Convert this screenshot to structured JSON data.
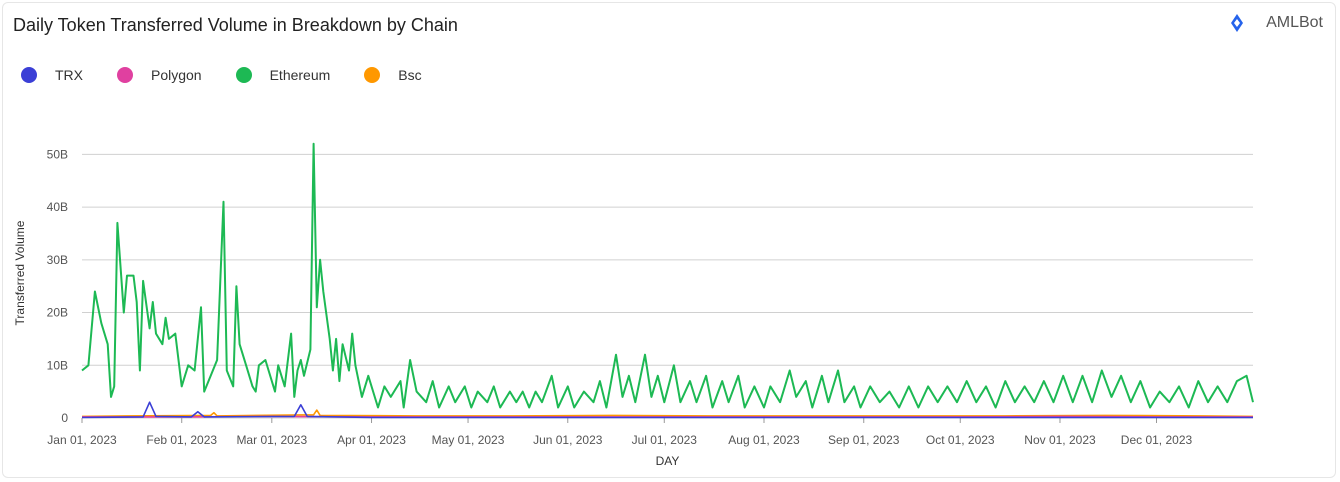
{
  "header": {
    "title": "Daily Token Transferred Volume in Breakdown by Chain",
    "brand": "AMLBot"
  },
  "colors": {
    "TRX": "#3b3fd6",
    "Polygon": "#e040a0",
    "Ethereum": "#1db954",
    "Bsc": "#ff9800",
    "grid": "#d0d0d0"
  },
  "chart_data": {
    "type": "line",
    "title": "Daily Token Transferred Volume in Breakdown by Chain",
    "xlabel": "DAY",
    "ylabel": "Transferred Volume",
    "ylim": [
      0,
      55
    ],
    "y_unit": "billions",
    "y_ticks": [
      "0",
      "10B",
      "20B",
      "30B",
      "40B",
      "50B"
    ],
    "x_ticks": [
      "Jan 01, 2023",
      "Feb 01, 2023",
      "Mar 01, 2023",
      "Apr 01, 2023",
      "May 01, 2023",
      "Jun 01, 2023",
      "Jul 01, 2023",
      "Aug 01, 2023",
      "Sep 01, 2023",
      "Oct 01, 2023",
      "Nov 01, 2023",
      "Dec 01, 2023"
    ],
    "grid": true,
    "legend_position": "top-left",
    "series": [
      {
        "name": "TRX",
        "points": [
          [
            "Jan 01, 2023",
            0.1
          ],
          [
            "Jan 20, 2023",
            0.2
          ],
          [
            "Jan 22, 2023",
            3.0
          ],
          [
            "Jan 24, 2023",
            0.3
          ],
          [
            "Feb 04, 2023",
            0.2
          ],
          [
            "Feb 06, 2023",
            1.2
          ],
          [
            "Feb 08, 2023",
            0.2
          ],
          [
            "Mar 08, 2023",
            0.3
          ],
          [
            "Mar 10, 2023",
            2.5
          ],
          [
            "Mar 12, 2023",
            0.3
          ],
          [
            "Apr 01, 2023",
            0.1
          ],
          [
            "Jun 01, 2023",
            0.1
          ],
          [
            "Sep 01, 2023",
            0.1
          ],
          [
            "Dec 31, 2023",
            0.1
          ]
        ]
      },
      {
        "name": "Polygon",
        "points": [
          [
            "Jan 01, 2023",
            0.2
          ],
          [
            "Feb 01, 2023",
            0.2
          ],
          [
            "Mar 01, 2023",
            0.3
          ],
          [
            "Apr 01, 2023",
            0.2
          ],
          [
            "May 01, 2023",
            0.2
          ],
          [
            "Jun 01, 2023",
            0.2
          ],
          [
            "Jul 01, 2023",
            0.2
          ],
          [
            "Aug 01, 2023",
            0.2
          ],
          [
            "Sep 01, 2023",
            0.2
          ],
          [
            "Oct 01, 2023",
            0.2
          ],
          [
            "Nov 01, 2023",
            0.3
          ],
          [
            "Dec 01, 2023",
            0.2
          ],
          [
            "Dec 31, 2023",
            0.2
          ]
        ]
      },
      {
        "name": "Ethereum",
        "points": [
          [
            "Jan 01, 2023",
            9
          ],
          [
            "Jan 03, 2023",
            10
          ],
          [
            "Jan 05, 2023",
            24
          ],
          [
            "Jan 07, 2023",
            18
          ],
          [
            "Jan 09, 2023",
            14
          ],
          [
            "Jan 10, 2023",
            4
          ],
          [
            "Jan 11, 2023",
            6
          ],
          [
            "Jan 12, 2023",
            37
          ],
          [
            "Jan 14, 2023",
            20
          ],
          [
            "Jan 15, 2023",
            27
          ],
          [
            "Jan 17, 2023",
            27
          ],
          [
            "Jan 18, 2023",
            22
          ],
          [
            "Jan 19, 2023",
            9
          ],
          [
            "Jan 20, 2023",
            26
          ],
          [
            "Jan 22, 2023",
            17
          ],
          [
            "Jan 23, 2023",
            22
          ],
          [
            "Jan 24, 2023",
            16
          ],
          [
            "Jan 26, 2023",
            14
          ],
          [
            "Jan 27, 2023",
            19
          ],
          [
            "Jan 28, 2023",
            15
          ],
          [
            "Jan 30, 2023",
            16
          ],
          [
            "Feb 01, 2023",
            6
          ],
          [
            "Feb 03, 2023",
            10
          ],
          [
            "Feb 05, 2023",
            9
          ],
          [
            "Feb 07, 2023",
            21
          ],
          [
            "Feb 08, 2023",
            5
          ],
          [
            "Feb 10, 2023",
            8
          ],
          [
            "Feb 12, 2023",
            11
          ],
          [
            "Feb 14, 2023",
            41
          ],
          [
            "Feb 15, 2023",
            9
          ],
          [
            "Feb 17, 2023",
            6
          ],
          [
            "Feb 18, 2023",
            25
          ],
          [
            "Feb 19, 2023",
            14
          ],
          [
            "Feb 21, 2023",
            10
          ],
          [
            "Feb 23, 2023",
            6
          ],
          [
            "Feb 24, 2023",
            5
          ],
          [
            "Feb 25, 2023",
            10
          ],
          [
            "Feb 27, 2023",
            11
          ],
          [
            "Feb 28, 2023",
            9
          ],
          [
            "Mar 02, 2023",
            5
          ],
          [
            "Mar 03, 2023",
            10
          ],
          [
            "Mar 05, 2023",
            6
          ],
          [
            "Mar 07, 2023",
            16
          ],
          [
            "Mar 08, 2023",
            4
          ],
          [
            "Mar 09, 2023",
            9
          ],
          [
            "Mar 10, 2023",
            11
          ],
          [
            "Mar 11, 2023",
            8
          ],
          [
            "Mar 13, 2023",
            13
          ],
          [
            "Mar 14, 2023",
            52
          ],
          [
            "Mar 15, 2023",
            21
          ],
          [
            "Mar 16, 2023",
            30
          ],
          [
            "Mar 17, 2023",
            24
          ],
          [
            "Mar 19, 2023",
            15
          ],
          [
            "Mar 20, 2023",
            9
          ],
          [
            "Mar 21, 2023",
            15
          ],
          [
            "Mar 22, 2023",
            7
          ],
          [
            "Mar 23, 2023",
            14
          ],
          [
            "Mar 25, 2023",
            9
          ],
          [
            "Mar 26, 2023",
            16
          ],
          [
            "Mar 27, 2023",
            10
          ],
          [
            "Mar 29, 2023",
            4
          ],
          [
            "Mar 31, 2023",
            8
          ],
          [
            "Apr 03, 2023",
            2
          ],
          [
            "Apr 05, 2023",
            6
          ],
          [
            "Apr 07, 2023",
            4
          ],
          [
            "Apr 10, 2023",
            7
          ],
          [
            "Apr 11, 2023",
            2
          ],
          [
            "Apr 13, 2023",
            11
          ],
          [
            "Apr 15, 2023",
            5
          ],
          [
            "Apr 18, 2023",
            3
          ],
          [
            "Apr 20, 2023",
            7
          ],
          [
            "Apr 22, 2023",
            2
          ],
          [
            "Apr 25, 2023",
            6
          ],
          [
            "Apr 27, 2023",
            3
          ],
          [
            "Apr 30, 2023",
            6
          ],
          [
            "May 02, 2023",
            2
          ],
          [
            "May 04, 2023",
            5
          ],
          [
            "May 07, 2023",
            3
          ],
          [
            "May 09, 2023",
            6
          ],
          [
            "May 11, 2023",
            2
          ],
          [
            "May 14, 2023",
            5
          ],
          [
            "May 16, 2023",
            3
          ],
          [
            "May 18, 2023",
            5
          ],
          [
            "May 20, 2023",
            2
          ],
          [
            "May 22, 2023",
            5
          ],
          [
            "May 24, 2023",
            3
          ],
          [
            "May 27, 2023",
            8
          ],
          [
            "May 29, 2023",
            2
          ],
          [
            "Jun 01, 2023",
            6
          ],
          [
            "Jun 03, 2023",
            2
          ],
          [
            "Jun 06, 2023",
            5
          ],
          [
            "Jun 09, 2023",
            3
          ],
          [
            "Jun 11, 2023",
            7
          ],
          [
            "Jun 13, 2023",
            2
          ],
          [
            "Jun 16, 2023",
            12
          ],
          [
            "Jun 18, 2023",
            4
          ],
          [
            "Jun 20, 2023",
            8
          ],
          [
            "Jun 22, 2023",
            3
          ],
          [
            "Jun 25, 2023",
            12
          ],
          [
            "Jun 27, 2023",
            4
          ],
          [
            "Jun 29, 2023",
            8
          ],
          [
            "Jul 01, 2023",
            3
          ],
          [
            "Jul 04, 2023",
            10
          ],
          [
            "Jul 06, 2023",
            3
          ],
          [
            "Jul 09, 2023",
            7
          ],
          [
            "Jul 11, 2023",
            3
          ],
          [
            "Jul 14, 2023",
            8
          ],
          [
            "Jul 16, 2023",
            2
          ],
          [
            "Jul 19, 2023",
            7
          ],
          [
            "Jul 21, 2023",
            3
          ],
          [
            "Jul 24, 2023",
            8
          ],
          [
            "Jul 26, 2023",
            2
          ],
          [
            "Jul 29, 2023",
            6
          ],
          [
            "Aug 01, 2023",
            2
          ],
          [
            "Aug 03, 2023",
            6
          ],
          [
            "Aug 06, 2023",
            3
          ],
          [
            "Aug 09, 2023",
            9
          ],
          [
            "Aug 11, 2023",
            4
          ],
          [
            "Aug 14, 2023",
            7
          ],
          [
            "Aug 16, 2023",
            2
          ],
          [
            "Aug 19, 2023",
            8
          ],
          [
            "Aug 21, 2023",
            3
          ],
          [
            "Aug 24, 2023",
            9
          ],
          [
            "Aug 26, 2023",
            3
          ],
          [
            "Aug 29, 2023",
            6
          ],
          [
            "Aug 31, 2023",
            2
          ],
          [
            "Sep 03, 2023",
            6
          ],
          [
            "Sep 06, 2023",
            3
          ],
          [
            "Sep 09, 2023",
            5
          ],
          [
            "Sep 12, 2023",
            2
          ],
          [
            "Sep 15, 2023",
            6
          ],
          [
            "Sep 18, 2023",
            2
          ],
          [
            "Sep 21, 2023",
            6
          ],
          [
            "Sep 24, 2023",
            3
          ],
          [
            "Sep 27, 2023",
            6
          ],
          [
            "Sep 30, 2023",
            3
          ],
          [
            "Oct 03, 2023",
            7
          ],
          [
            "Oct 06, 2023",
            3
          ],
          [
            "Oct 09, 2023",
            6
          ],
          [
            "Oct 12, 2023",
            2
          ],
          [
            "Oct 15, 2023",
            7
          ],
          [
            "Oct 18, 2023",
            3
          ],
          [
            "Oct 21, 2023",
            6
          ],
          [
            "Oct 24, 2023",
            3
          ],
          [
            "Oct 27, 2023",
            7
          ],
          [
            "Oct 30, 2023",
            3
          ],
          [
            "Nov 02, 2023",
            8
          ],
          [
            "Nov 05, 2023",
            3
          ],
          [
            "Nov 08, 2023",
            8
          ],
          [
            "Nov 11, 2023",
            3
          ],
          [
            "Nov 14, 2023",
            9
          ],
          [
            "Nov 17, 2023",
            4
          ],
          [
            "Nov 20, 2023",
            8
          ],
          [
            "Nov 23, 2023",
            3
          ],
          [
            "Nov 26, 2023",
            7
          ],
          [
            "Nov 29, 2023",
            2
          ],
          [
            "Dec 02, 2023",
            5
          ],
          [
            "Dec 05, 2023",
            3
          ],
          [
            "Dec 08, 2023",
            6
          ],
          [
            "Dec 11, 2023",
            2
          ],
          [
            "Dec 14, 2023",
            7
          ],
          [
            "Dec 17, 2023",
            3
          ],
          [
            "Dec 20, 2023",
            6
          ],
          [
            "Dec 23, 2023",
            3
          ],
          [
            "Dec 26, 2023",
            7
          ],
          [
            "Dec 29, 2023",
            8
          ],
          [
            "Dec 31, 2023",
            3
          ]
        ]
      },
      {
        "name": "Bsc",
        "points": [
          [
            "Jan 01, 2023",
            0.3
          ],
          [
            "Jan 15, 2023",
            0.4
          ],
          [
            "Feb 10, 2023",
            0.5
          ],
          [
            "Feb 11, 2023",
            1.0
          ],
          [
            "Feb 12, 2023",
            0.4
          ],
          [
            "Mar 14, 2023",
            0.6
          ],
          [
            "Mar 15, 2023",
            1.5
          ],
          [
            "Mar 16, 2023",
            0.5
          ],
          [
            "Apr 15, 2023",
            0.4
          ],
          [
            "May 15, 2023",
            0.4
          ],
          [
            "Jun 15, 2023",
            0.5
          ],
          [
            "Jul 15, 2023",
            0.4
          ],
          [
            "Aug 15, 2023",
            0.4
          ],
          [
            "Sep 15, 2023",
            0.4
          ],
          [
            "Oct 15, 2023",
            0.4
          ],
          [
            "Nov 15, 2023",
            0.5
          ],
          [
            "Dec 15, 2023",
            0.4
          ],
          [
            "Dec 31, 2023",
            0.3
          ]
        ]
      }
    ]
  }
}
